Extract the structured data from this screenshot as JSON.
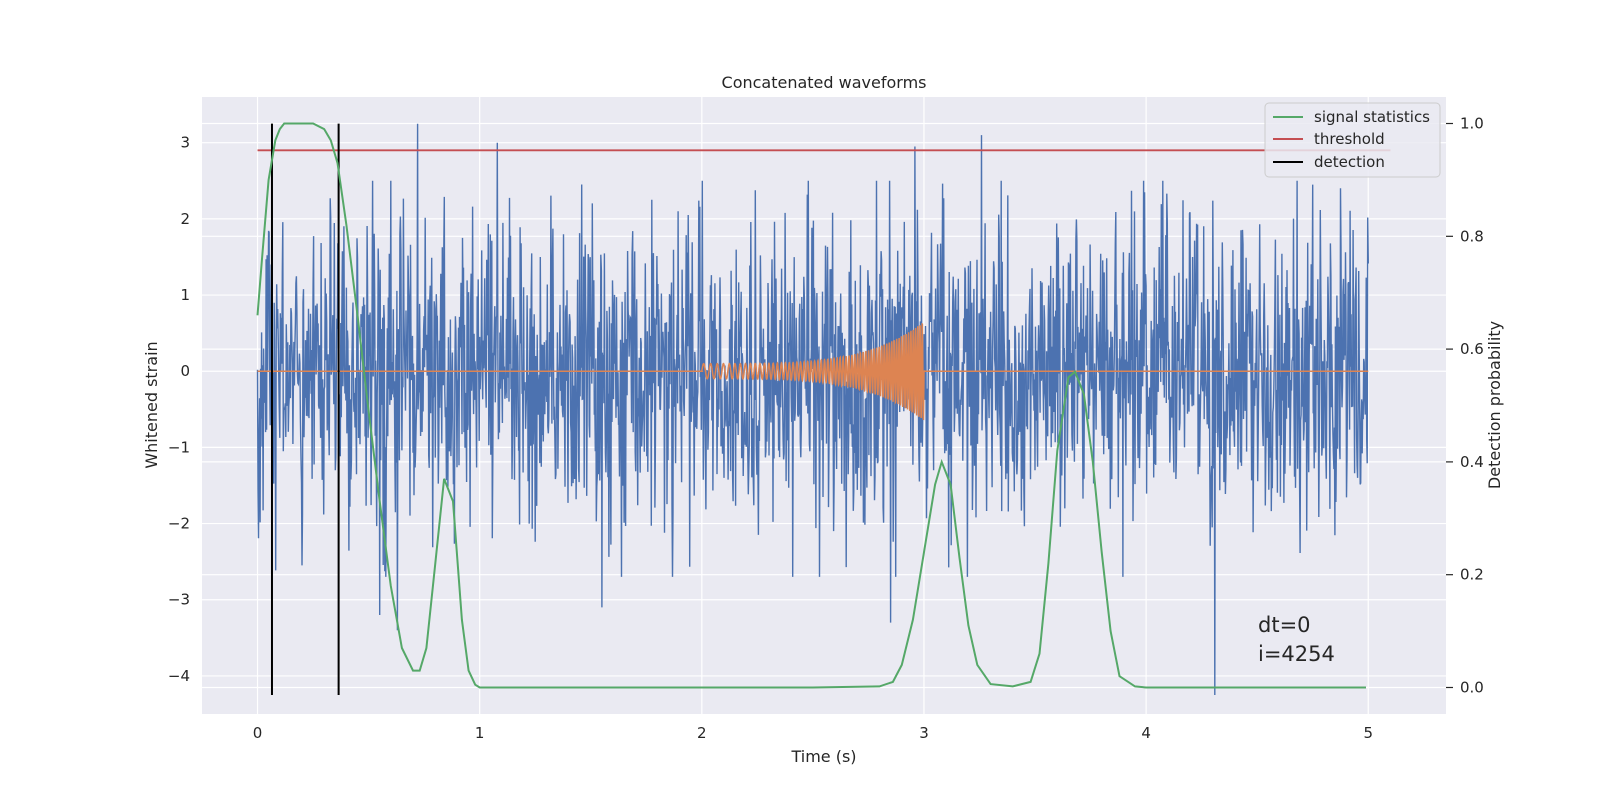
{
  "chart_data": {
    "type": "line",
    "title": "Concatenated waveforms",
    "xlabel": "Time (s)",
    "ylabel": "Whitened strain",
    "ylabel_right": "Detection probability",
    "xlim": [
      -0.25,
      5.35
    ],
    "ylim": [
      -4.5,
      3.6
    ],
    "ylim_right": [
      -0.047,
      1.047
    ],
    "x_ticks": [
      0,
      1,
      2,
      3,
      4,
      5
    ],
    "y_ticks": [
      -4,
      -3,
      -2,
      -1,
      0,
      1,
      2,
      3
    ],
    "y_ticks_right": [
      0.0,
      0.2,
      0.4,
      0.6,
      0.8,
      1.0
    ],
    "x_tick_labels": [
      "0",
      "1",
      "2",
      "3",
      "4",
      "5"
    ],
    "y_tick_labels": [
      "−4",
      "−3",
      "−2",
      "−1",
      "0",
      "1",
      "2",
      "3"
    ],
    "y_tick_labels_right": [
      "0.0",
      "0.2",
      "0.4",
      "0.6",
      "0.8",
      "1.0"
    ],
    "grid": true,
    "legend_position": "top-right",
    "colors": {
      "strain": "#4c72b0",
      "waveform": "#dd8452",
      "signal_statistics": "#55a868",
      "threshold": "#c44e52",
      "detection": "#000000",
      "background": "#eaeaf2",
      "grid": "#ffffff"
    },
    "strain": {
      "x_range": [
        0,
        5
      ],
      "envelope": [
        -2.5,
        2.5
      ],
      "peaks": [
        {
          "x": 0.72,
          "y": 3.25
        },
        {
          "x": 1.08,
          "y": 3.0
        },
        {
          "x": 1.55,
          "y": 3.05
        },
        {
          "x": 2.96,
          "y": 2.95
        },
        {
          "x": 3.26,
          "y": 3.1
        },
        {
          "x": 1.55,
          "y": -3.1
        },
        {
          "x": 2.85,
          "y": -3.3
        },
        {
          "x": 4.31,
          "y": -4.25
        },
        {
          "x": 0.55,
          "y": -3.2
        },
        {
          "x": 0.63,
          "y": -3.4
        }
      ]
    },
    "waveform": {
      "start": 2.0,
      "end": 3.0,
      "amp_start": 0.1,
      "amp_end": 0.65
    },
    "series": [
      {
        "name": "signal statistics",
        "axis": "right",
        "x": [
          0.0,
          0.02,
          0.05,
          0.08,
          0.1,
          0.12,
          0.15,
          0.2,
          0.25,
          0.3,
          0.33,
          0.36,
          0.4,
          0.45,
          0.5,
          0.55,
          0.6,
          0.65,
          0.7,
          0.73,
          0.76,
          0.8,
          0.84,
          0.88,
          0.92,
          0.95,
          0.98,
          1.0,
          1.5,
          2.0,
          2.5,
          2.8,
          2.86,
          2.9,
          2.95,
          3.0,
          3.05,
          3.08,
          3.12,
          3.16,
          3.2,
          3.24,
          3.3,
          3.4,
          3.48,
          3.52,
          3.56,
          3.6,
          3.65,
          3.68,
          3.72,
          3.76,
          3.8,
          3.84,
          3.88,
          3.95,
          4.0,
          4.5,
          4.99
        ],
        "y": [
          0.66,
          0.76,
          0.9,
          0.97,
          0.99,
          1.0,
          1.0,
          1.0,
          1.0,
          0.99,
          0.97,
          0.93,
          0.82,
          0.66,
          0.49,
          0.33,
          0.18,
          0.07,
          0.03,
          0.03,
          0.07,
          0.22,
          0.37,
          0.33,
          0.12,
          0.03,
          0.005,
          0.0,
          0.0,
          0.0,
          0.0,
          0.002,
          0.01,
          0.04,
          0.12,
          0.24,
          0.36,
          0.4,
          0.36,
          0.23,
          0.11,
          0.04,
          0.006,
          0.002,
          0.01,
          0.06,
          0.22,
          0.42,
          0.55,
          0.56,
          0.52,
          0.4,
          0.24,
          0.1,
          0.02,
          0.002,
          0.0,
          0.0,
          0.0
        ]
      },
      {
        "name": "threshold",
        "axis": "left",
        "x": [
          0,
          5.1
        ],
        "y": [
          2.9,
          2.9
        ]
      },
      {
        "name": "detection",
        "axis": "left",
        "x": [
          0.065,
          0.365
        ],
        "y_range": [
          -4.25,
          3.25
        ]
      }
    ],
    "annotations": [
      "dt=0",
      "i=4254"
    ]
  }
}
